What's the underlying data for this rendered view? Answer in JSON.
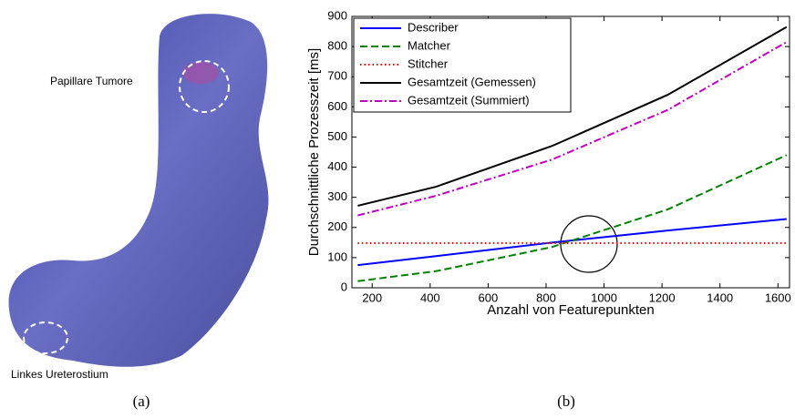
{
  "panel_a": {
    "annotations": [
      "Papillare Tumore",
      "Linkes Ureterostium"
    ],
    "caption": "(a)"
  },
  "panel_b": {
    "caption": "(b)"
  },
  "chart_data": {
    "type": "line",
    "xlabel": "Anzahl von Featurepunkten",
    "ylabel": "Durchschnittliche Prozesszeit [ms]",
    "x": [
      150,
      420,
      820,
      1220,
      1630
    ],
    "series": [
      {
        "name": "Describer",
        "color": "#0000ff",
        "style": "solid",
        "values": [
          75,
          105,
          150,
          190,
          228
        ]
      },
      {
        "name": "Matcher",
        "color": "#008000",
        "style": "dashed",
        "values": [
          22,
          55,
          135,
          260,
          440
        ]
      },
      {
        "name": "Stitcher",
        "color": "#ff0000",
        "style": "dotted",
        "values": [
          148,
          148,
          148,
          148,
          148
        ]
      },
      {
        "name": "Gesamtzeit (Gemessen)",
        "color": "#000000",
        "style": "solid",
        "values": [
          272,
          335,
          470,
          640,
          865
        ]
      },
      {
        "name": "Gesamtzeit (Summiert)",
        "color": "#bf00bf",
        "style": "dashdot",
        "values": [
          240,
          305,
          425,
          590,
          815
        ]
      }
    ],
    "xlim": [
      130,
      1640
    ],
    "xticks": [
      200,
      400,
      600,
      800,
      1000,
      1200,
      1400,
      1600
    ],
    "ylim": [
      0,
      900
    ],
    "yticks": [
      0,
      100,
      200,
      300,
      400,
      500,
      600,
      700,
      800,
      900
    ],
    "legend": "upper left"
  }
}
